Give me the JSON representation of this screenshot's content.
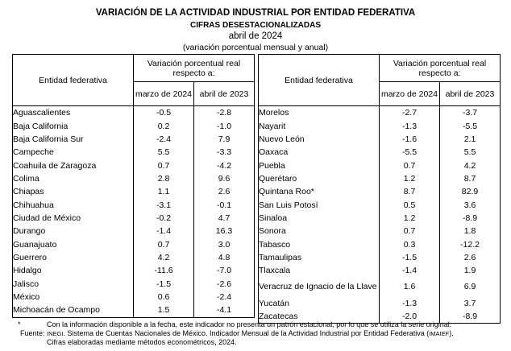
{
  "header": {
    "title": "VARIACIÓN DE LA ACTIVIDAD INDUSTRIAL POR ENTIDAD FEDERATIVA",
    "subtitle": "CIFRAS DESESTACIONALIZADAS",
    "period": "abril de 2024",
    "note": "(variación porcentual mensual y anual)"
  },
  "columns": {
    "entity": "Entidad federativa",
    "group": "Variación porcentual real respecto a:",
    "col1": "marzo de 2024",
    "col2": "abril de 2023"
  },
  "left_rows": [
    {
      "entity": "Aguascalientes",
      "m": "-0.5",
      "a": "-2.8"
    },
    {
      "entity": "Baja California",
      "m": "0.2",
      "a": "-1.0"
    },
    {
      "entity": "Baja California Sur",
      "m": "-2.4",
      "a": "7.9"
    },
    {
      "entity": "Campeche",
      "m": "5.5",
      "a": "-3.3"
    },
    {
      "entity": "Coahuila de Zaragoza",
      "m": "0.7",
      "a": "-4.2"
    },
    {
      "entity": "Colima",
      "m": "2.8",
      "a": "9.6"
    },
    {
      "entity": "Chiapas",
      "m": "1.1",
      "a": "2.6"
    },
    {
      "entity": "Chihuahua",
      "m": "-3.1",
      "a": "-0.1"
    },
    {
      "entity": "Ciudad de México",
      "m": "-0.2",
      "a": "4.7"
    },
    {
      "entity": "Durango",
      "m": "-1.4",
      "a": "16.3"
    },
    {
      "entity": "Guanajuato",
      "m": "0.7",
      "a": "3.0"
    },
    {
      "entity": "Guerrero",
      "m": "4.2",
      "a": "4.8"
    },
    {
      "entity": "Hidalgo",
      "m": "-11.6",
      "a": "-7.0"
    },
    {
      "entity": "Jalisco",
      "m": "-1.5",
      "a": "-2.6"
    },
    {
      "entity": "México",
      "m": "0.6",
      "a": "-2.4"
    },
    {
      "entity": "Michoacán de Ocampo",
      "m": "1.5",
      "a": "-4.1"
    }
  ],
  "right_rows": [
    {
      "entity": "Morelos",
      "m": "-2.7",
      "a": "-3.7"
    },
    {
      "entity": "Nayarit",
      "m": "-1.3",
      "a": "-5.5"
    },
    {
      "entity": "Nuevo León",
      "m": "-1.6",
      "a": "2.1"
    },
    {
      "entity": "Oaxaca",
      "m": "-5.5",
      "a": "5.5"
    },
    {
      "entity": "Puebla",
      "m": "0.7",
      "a": "4.2"
    },
    {
      "entity": "Querétaro",
      "m": "1.2",
      "a": "8.7"
    },
    {
      "entity": "Quintana Roo*",
      "m": "8.7",
      "a": "82.9"
    },
    {
      "entity": "San Luis Potosí",
      "m": "0.5",
      "a": "3.6"
    },
    {
      "entity": "Sinaloa",
      "m": "1.2",
      "a": "-8.9"
    },
    {
      "entity": "Sonora",
      "m": "0.7",
      "a": "1.8"
    },
    {
      "entity": "Tabasco",
      "m": "0.3",
      "a": "-12.2"
    },
    {
      "entity": "Tamaulipas",
      "m": "-1.5",
      "a": "2.6"
    },
    {
      "entity": "Tlaxcala",
      "m": "-1.4",
      "a": "1.9"
    },
    {
      "entity": "Veracruz de Ignacio de la Llave",
      "m": "1.6",
      "a": "6.9"
    },
    {
      "entity": "Yucatán",
      "m": "-1.3",
      "a": "3.7"
    },
    {
      "entity": "Zacatecas",
      "m": "-2.0",
      "a": "-8.9"
    }
  ],
  "footnotes": {
    "asterisk": "*",
    "note1": "Con la información disponible a la fecha, este indicador no presenta un patrón estacional, por lo que se utiliza la serie original.",
    "source_label": "Fuente:",
    "source_abbr1": "INEGI",
    "source_mid": ". Sistema de Cuentas Nacionales de México. Indicador Mensual de la Actividad Industrial por Entidad Federativa (",
    "source_abbr2": "IMAIEF",
    "source_end": ").",
    "note2": "Cifras elaboradas mediante métodos econométricos, 2024."
  }
}
